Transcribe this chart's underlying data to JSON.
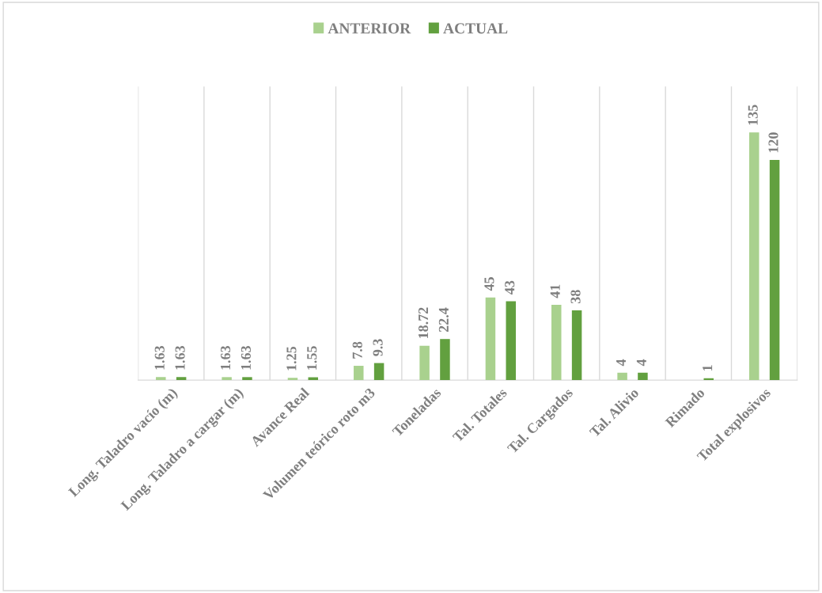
{
  "chart_data": {
    "type": "bar",
    "categories": [
      "Long. Taladro vacío (m)",
      "Long. Taladro a cargar (m)",
      "Avance Real",
      "Volumen teórico roto m3",
      "Toneladas",
      "Tal. Totales",
      "Tal. Cargados",
      "Tal. Alivio",
      "Rimado",
      "Total explosivos"
    ],
    "series": [
      {
        "name": "ANTERIOR",
        "color": "#a9d18e",
        "values": [
          1.63,
          1.63,
          1.25,
          7.8,
          18.72,
          45,
          41,
          4,
          null,
          135
        ]
      },
      {
        "name": "ACTUAL",
        "color": "#62a03f",
        "values": [
          1.63,
          1.63,
          1.55,
          9.3,
          22.4,
          43,
          38,
          4,
          1,
          120
        ]
      }
    ],
    "ylim": [
      0,
      160
    ],
    "tick_labels": "x",
    "grid": "x",
    "legend": "top",
    "data_labels": true
  }
}
